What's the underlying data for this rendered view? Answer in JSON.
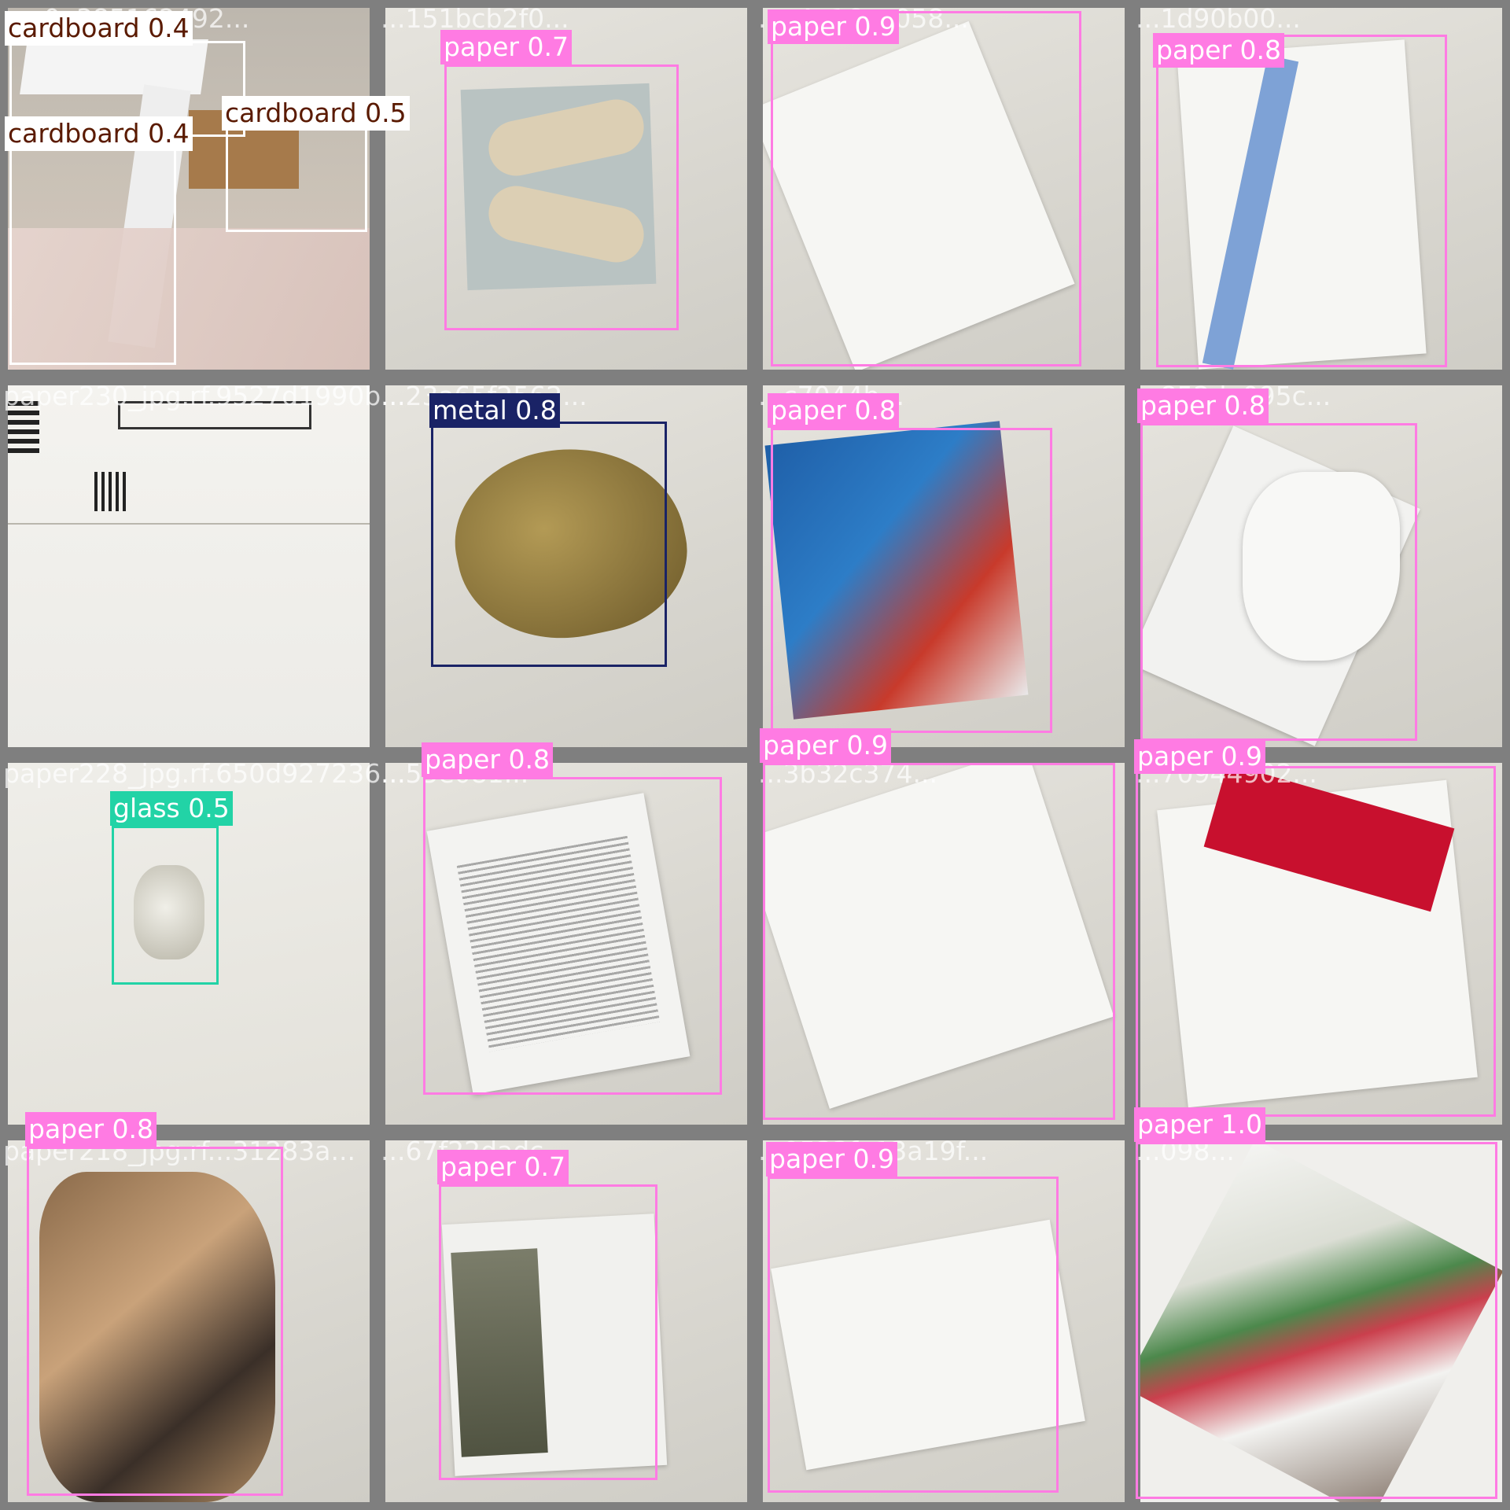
{
  "colors": {
    "paper": "#ff7be3",
    "cardboard": "#5a1a00",
    "metal": "#1a2366",
    "glass": "#22d3a6",
    "border": "#808080"
  },
  "tiles": [
    {
      "filename": "...a0a385162492...",
      "detections": [
        {
          "label": "cardboard 0.4"
        },
        {
          "label": "cardboard 0.5"
        },
        {
          "label": "cardboard 0.4"
        }
      ]
    },
    {
      "filename": "...151bcb2f0...",
      "detections": [
        {
          "label": "paper 0.7"
        }
      ]
    },
    {
      "filename": "...c4e16ae058...",
      "detections": [
        {
          "label": "paper 0.9"
        }
      ]
    },
    {
      "filename": "...1d90b00...",
      "detections": [
        {
          "label": "paper 0.8"
        }
      ]
    },
    {
      "filename": "paper230_jpg.rf.9527d1990b...",
      "detections": []
    },
    {
      "filename": "...23a65f2562...",
      "detections": [
        {
          "label": "metal 0.8"
        }
      ]
    },
    {
      "filename": "...c7044b...",
      "detections": [
        {
          "label": "paper 0.8"
        }
      ]
    },
    {
      "filename": "...852da095c...",
      "detections": [
        {
          "label": "paper 0.8"
        }
      ]
    },
    {
      "filename": "paper228_jpg.rf.650d927236...",
      "detections": [
        {
          "label": "glass 0.5"
        }
      ]
    },
    {
      "filename": "...55e081...",
      "detections": [
        {
          "label": "paper 0.8"
        }
      ]
    },
    {
      "filename": "...3b32c374...",
      "detections": [
        {
          "label": "paper 0.9"
        }
      ]
    },
    {
      "filename": "...70944902...",
      "detections": [
        {
          "label": "paper 0.9"
        }
      ]
    },
    {
      "filename": "paper218_jpg.rf...31283a...",
      "detections": [
        {
          "label": "paper 0.8"
        }
      ]
    },
    {
      "filename": "...67f22dadc...",
      "detections": [
        {
          "label": "paper 0.7"
        }
      ]
    },
    {
      "filename": "...0533fe13a19f...",
      "detections": [
        {
          "label": "paper 0.9"
        }
      ]
    },
    {
      "filename": "...098...",
      "detections": [
        {
          "label": "paper 1.0"
        }
      ]
    }
  ]
}
